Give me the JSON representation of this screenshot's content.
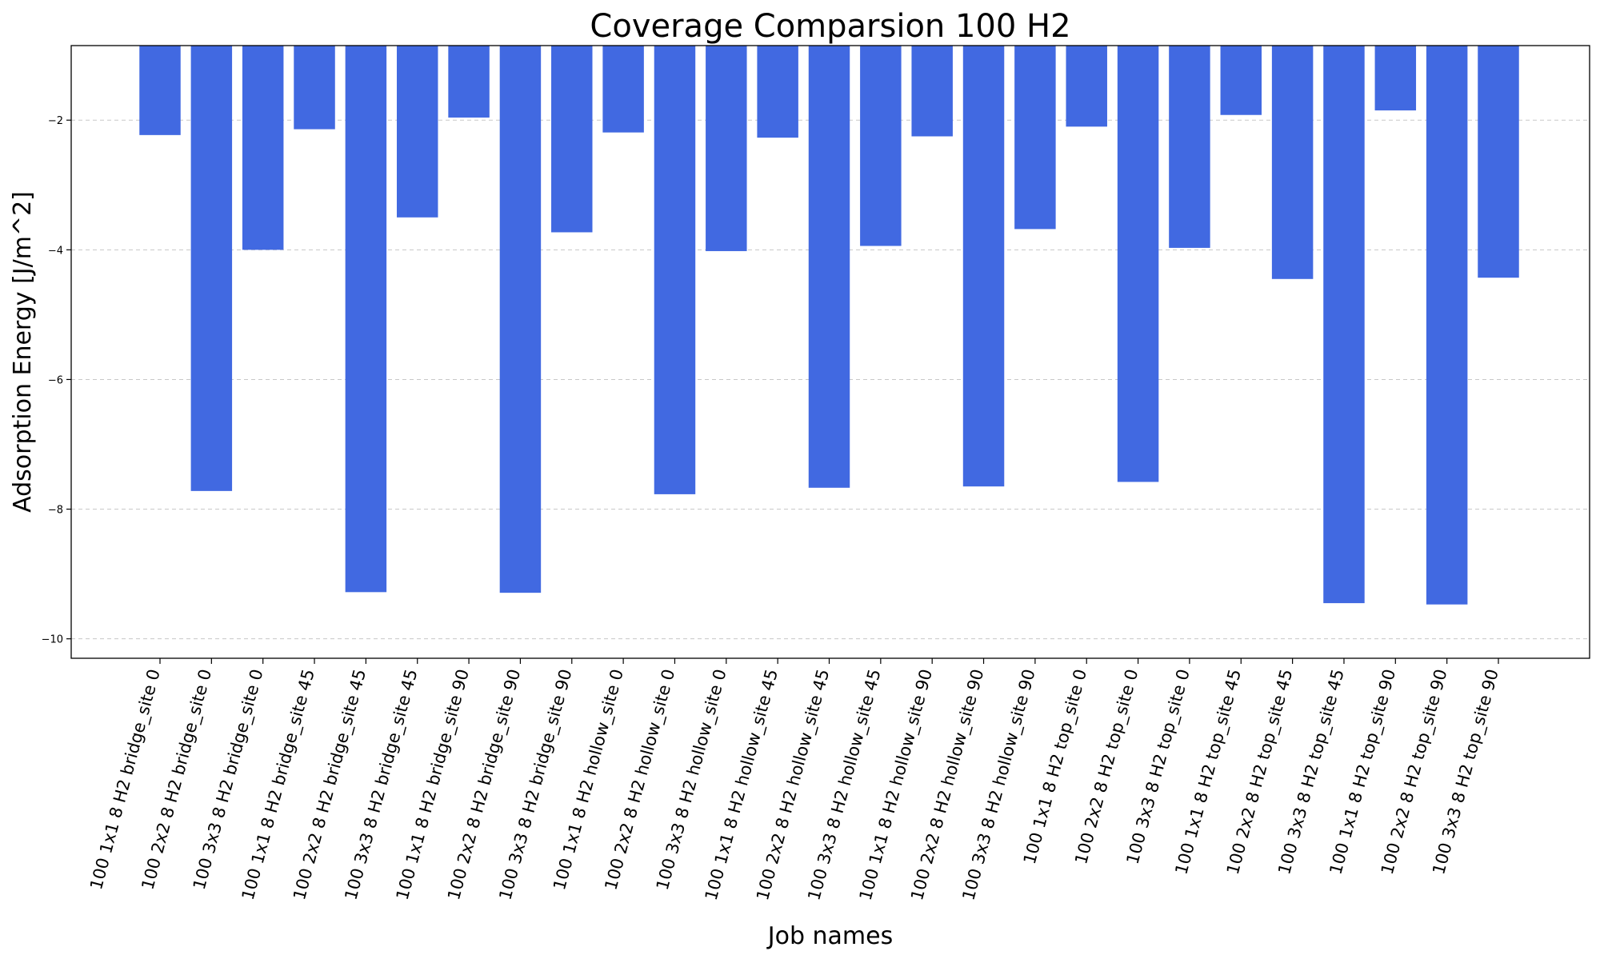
{
  "chart_data": {
    "type": "bar",
    "title": "Coverage Comparsion 100 H2",
    "xlabel": "Job names",
    "ylabel": "Adsorption Energy [J/m^2]",
    "ylim": [
      -10.3,
      -0.85
    ],
    "yticks": [
      -2,
      -4,
      -6,
      -8,
      -10
    ],
    "grid": "horizontal dashed",
    "bar_color": "#4169e1",
    "categories": [
      "100 1x1 8 H2 bridge_site 0",
      "100 2x2 8 H2 bridge_site 0",
      "100 3x3 8 H2 bridge_site 0",
      "100 1x1 8 H2 bridge_site 45",
      "100 2x2 8 H2 bridge_site 45",
      "100 3x3 8 H2 bridge_site 45",
      "100 1x1 8 H2 bridge_site 90",
      "100 2x2 8 H2 bridge_site 90",
      "100 3x3 8 H2 bridge_site 90",
      "100 1x1 8 H2 hollow_site 0",
      "100 2x2 8 H2 hollow_site 0",
      "100 3x3 8 H2 hollow_site 0",
      "100 1x1 8 H2 hollow_site 45",
      "100 2x2 8 H2 hollow_site 45",
      "100 3x3 8 H2 hollow_site 45",
      "100 1x1 8 H2 hollow_site 90",
      "100 2x2 8 H2 hollow_site 90",
      "100 3x3 8 H2 hollow_site 90",
      "100 1x1 8 H2 top_site 0",
      "100 2x2 8 H2 top_site 0",
      "100 3x3 8 H2 top_site 0",
      "100 1x1 8 H2 top_site 45",
      "100 2x2 8 H2 top_site 45",
      "100 3x3 8 H2 top_site 45",
      "100 1x1 8 H2 top_site 90",
      "100 2x2 8 H2 top_site 90",
      "100 3x3 8 H2 top_site 90"
    ],
    "values": [
      -2.23,
      -7.72,
      -4.0,
      -2.14,
      -9.28,
      -3.5,
      -1.96,
      -9.29,
      -3.73,
      -2.19,
      -7.77,
      -4.02,
      -2.27,
      -7.67,
      -3.94,
      -2.25,
      -7.65,
      -3.68,
      -2.1,
      -7.58,
      -3.97,
      -1.92,
      -4.45,
      -9.45,
      -1.85,
      -9.47,
      -4.43
    ]
  }
}
